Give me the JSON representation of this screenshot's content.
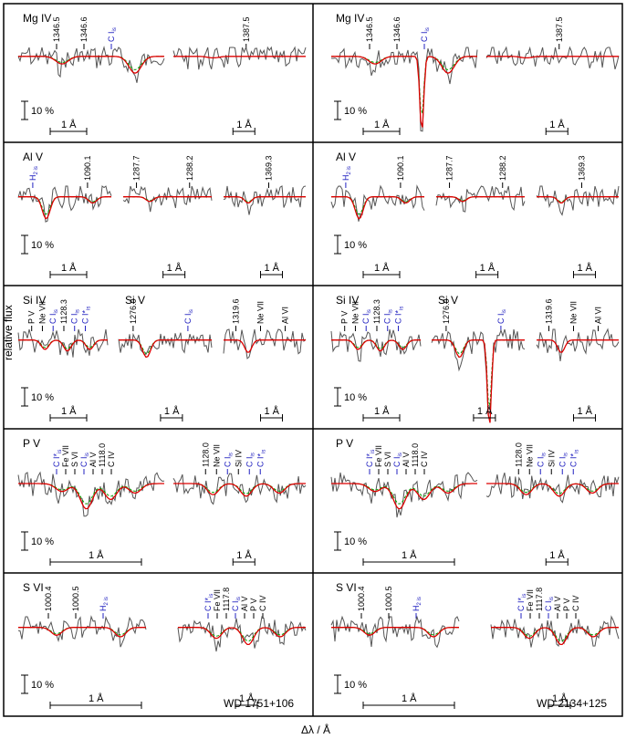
{
  "chart_data": {
    "type": "line",
    "ylabel": "relative flux",
    "xlabel": "Δλ / Å",
    "colors": {
      "observed": "#555555",
      "model": "#dd0000",
      "model_alt": "#00a000",
      "ism": "#2020c0"
    },
    "columns": [
      "WD 1751+106",
      "WD 2134+125"
    ],
    "scale_bars": {
      "flux": "10 %",
      "wavelength": "1 Å"
    },
    "rows": [
      {
        "ion": "Mg IV",
        "segments": [
          {
            "lines": [
              {
                "t": "1346.5"
              },
              {
                "t": "1346.6"
              },
              {
                "t": "C I",
                "sub": "is",
                "ism": true
              }
            ]
          },
          {
            "lines": [
              {
                "t": "1387.5"
              }
            ]
          }
        ]
      },
      {
        "ion": "Al V",
        "segments": [
          {
            "lines": [
              {
                "t": "H",
                "sub": "2 is",
                "ism": true
              },
              {
                "t": "1090.1"
              }
            ]
          },
          {
            "lines": [
              {
                "t": "1287.7"
              },
              {
                "t": "1288.2"
              }
            ]
          },
          {
            "lines": [
              {
                "t": "1369.3"
              }
            ]
          }
        ]
      },
      {
        "ion": "Si IV",
        "ion2": "Si V",
        "segments": [
          {
            "lines": [
              {
                "t": "P V"
              },
              {
                "t": "Ne VII"
              },
              {
                "t": "C I",
                "sub": "is",
                "ism": true
              },
              {
                "t": "1128.3"
              },
              {
                "t": "C I",
                "sub": "is",
                "ism": true
              },
              {
                "t": "C I*",
                "sub": "is",
                "ism": true
              }
            ]
          },
          {
            "lines": [
              {
                "t": "1276.0"
              },
              {
                "t": "C I",
                "sub": "is",
                "ism": true
              }
            ]
          },
          {
            "lines": [
              {
                "t": "1319.6"
              },
              {
                "t": "Ne VII"
              },
              {
                "t": "Al VI"
              }
            ]
          }
        ]
      },
      {
        "ion": "P V",
        "segments": [
          {
            "lines": [
              {
                "t": "C I*",
                "sub": "is",
                "ism": true
              },
              {
                "t": "Fe VII"
              },
              {
                "t": "S VI"
              },
              {
                "t": "C I",
                "sub": "is",
                "ism": true
              },
              {
                "t": "Al V"
              },
              {
                "t": "1118.0"
              },
              {
                "t": "C IV"
              }
            ]
          },
          {
            "lines": [
              {
                "t": "1128.0"
              },
              {
                "t": "Ne VII"
              },
              {
                "t": "C I",
                "sub": "is",
                "ism": true
              },
              {
                "t": "Si IV"
              },
              {
                "t": "C I",
                "sub": "is",
                "ism": true
              },
              {
                "t": "C I*",
                "sub": "is",
                "ism": true
              }
            ]
          }
        ]
      },
      {
        "ion": "S VI",
        "segments": [
          {
            "lines": [
              {
                "t": "1000.4"
              },
              {
                "t": "1000.5"
              },
              {
                "t": "H",
                "sub": "2 is",
                "ism": true
              }
            ]
          },
          {
            "lines": [
              {
                "t": "C I*",
                "sub": "is",
                "ism": true
              },
              {
                "t": "Fe VII"
              },
              {
                "t": "1117.8"
              },
              {
                "t": "C I",
                "sub": "is",
                "ism": true
              },
              {
                "t": "Al V"
              },
              {
                "t": "P V"
              },
              {
                "t": "C IV"
              }
            ]
          }
        ]
      }
    ]
  }
}
